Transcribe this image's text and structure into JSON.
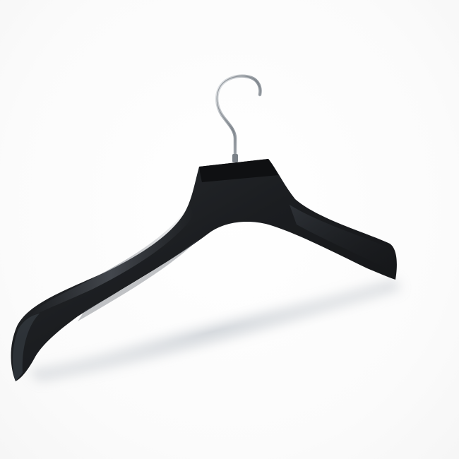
{
  "image": {
    "subject": "hanger",
    "colors": {
      "background": "#ffffff",
      "hanger_body": "#1b1d20",
      "hanger_highlight": "#4a5058",
      "hook_metal": "#b9bec4",
      "shadow": "#cfd3d8"
    }
  }
}
